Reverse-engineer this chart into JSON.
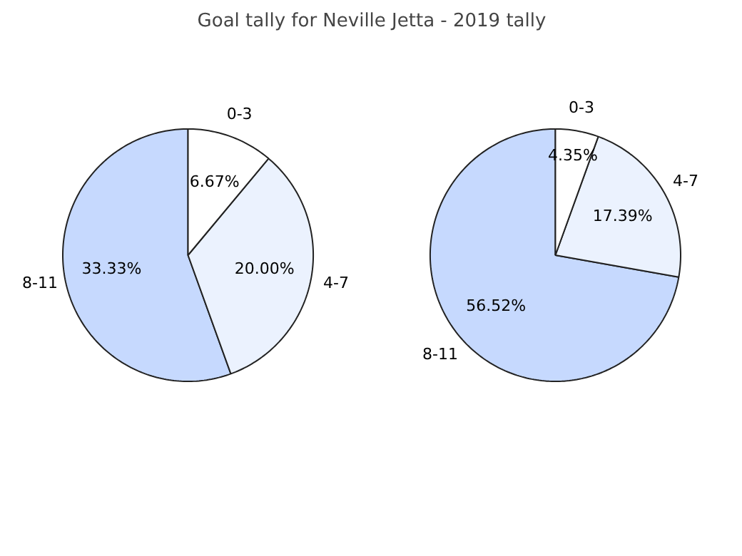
{
  "chart_data": [
    {
      "type": "pie",
      "title": "Goal tally for Neville Jetta - 2019 tally",
      "categories": [
        "8-11",
        "4-7",
        "0-3"
      ],
      "values": [
        33.33,
        20.0,
        6.67
      ],
      "value_labels": [
        "33.33%",
        "20.00%",
        "6.67%"
      ],
      "colors": [
        "#c6d9fe",
        "#ebf2fe",
        "#ffffff"
      ]
    },
    {
      "type": "pie",
      "categories": [
        "8-11",
        "4-7",
        "0-3"
      ],
      "values": [
        56.52,
        17.39,
        4.35
      ],
      "value_labels": [
        "56.52%",
        "17.39%",
        "4.35%"
      ],
      "colors": [
        "#c6d9fe",
        "#ebf2fe",
        "#ffffff"
      ]
    }
  ]
}
